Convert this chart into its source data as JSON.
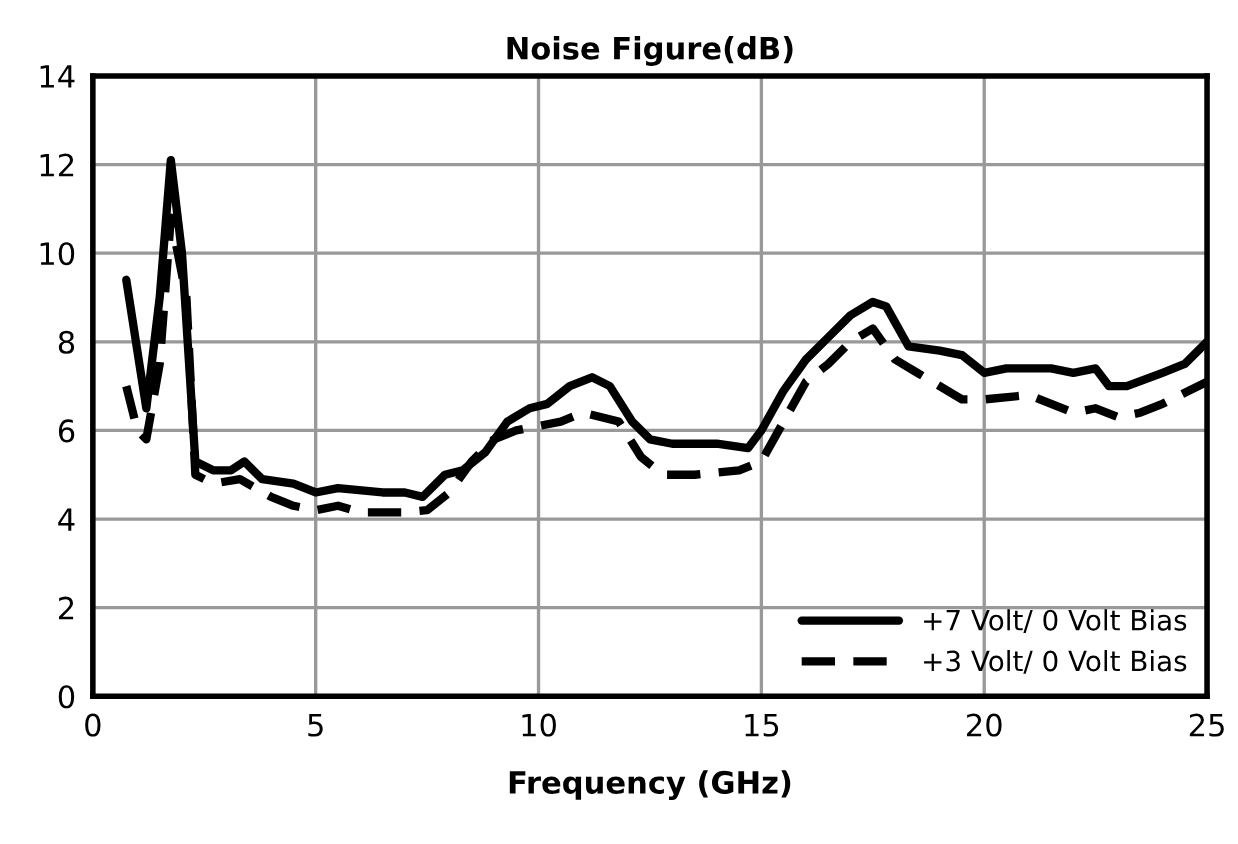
{
  "chart_data": {
    "type": "line",
    "title": "Noise Figure(dB)",
    "xlabel": "Frequency (GHz)",
    "xlim": [
      0,
      25
    ],
    "xticks": [
      0,
      5,
      10,
      15,
      20,
      25
    ],
    "ylim": [
      0,
      14
    ],
    "yticks": [
      0,
      2,
      4,
      6,
      8,
      10,
      12,
      14
    ],
    "grid": true,
    "legend": "bottom right",
    "marker": "none",
    "series": [
      {
        "name": "+7 Volt/ 0 Volt Bias",
        "color": "#000000",
        "line_style": "solid",
        "x": [
          0.75,
          1.2,
          1.5,
          1.75,
          2.0,
          2.3,
          2.7,
          3.1,
          3.4,
          3.8,
          4.5,
          5.0,
          5.5,
          6.5,
          7.0,
          7.4,
          7.9,
          8.3,
          8.8,
          9.3,
          9.8,
          10.2,
          10.7,
          11.2,
          11.6,
          12.1,
          12.5,
          13,
          14,
          14.7,
          15,
          15.5,
          16,
          16.5,
          17,
          17.5,
          17.8,
          18.3,
          19,
          19.5,
          20,
          20.5,
          21.5,
          22,
          22.5,
          22.8,
          23.2,
          24,
          24.5,
          25
        ],
        "values": [
          9.4,
          6.5,
          9,
          12.1,
          10,
          5.3,
          5.1,
          5.1,
          5.3,
          4.9,
          4.8,
          4.6,
          4.7,
          4.6,
          4.6,
          4.5,
          5.0,
          5.1,
          5.5,
          6.2,
          6.5,
          6.6,
          7.0,
          7.2,
          7.0,
          6.2,
          5.8,
          5.7,
          5.7,
          5.6,
          6.0,
          6.9,
          7.6,
          8.1,
          8.6,
          8.9,
          8.8,
          7.9,
          7.8,
          7.7,
          7.3,
          7.4,
          7.4,
          7.3,
          7.4,
          7.0,
          7.0,
          7.3,
          7.5,
          8.0
        ]
      },
      {
        "name": "+3 Volt/ 0 Volt Bias",
        "color": "#000000",
        "line_style": "dashed",
        "x": [
          0.75,
          1.0,
          1.2,
          1.5,
          1.75,
          2.1,
          2.3,
          2.7,
          3.3,
          4,
          4.5,
          5,
          5.5,
          6,
          7,
          7.5,
          8,
          8.5,
          9,
          9.5,
          10,
          10.5,
          11,
          11.8,
          12.3,
          12.8,
          13.5,
          14.5,
          15,
          15.5,
          16,
          16.5,
          17,
          17.5,
          18,
          18.5,
          19.5,
          20,
          21,
          22,
          22.5,
          23,
          23.5,
          24,
          25
        ],
        "values": [
          7.0,
          6.0,
          5.8,
          7.5,
          10.8,
          9,
          5.0,
          4.8,
          4.9,
          4.5,
          4.3,
          4.2,
          4.3,
          4.15,
          4.15,
          4.2,
          4.6,
          5.3,
          5.8,
          6.0,
          6.1,
          6.2,
          6.4,
          6.2,
          5.4,
          5.0,
          5.0,
          5.1,
          5.3,
          6.2,
          7.1,
          7.5,
          8.0,
          8.3,
          7.6,
          7.3,
          6.7,
          6.7,
          6.8,
          6.4,
          6.5,
          6.3,
          6.4,
          6.6,
          7.1
        ]
      }
    ]
  }
}
